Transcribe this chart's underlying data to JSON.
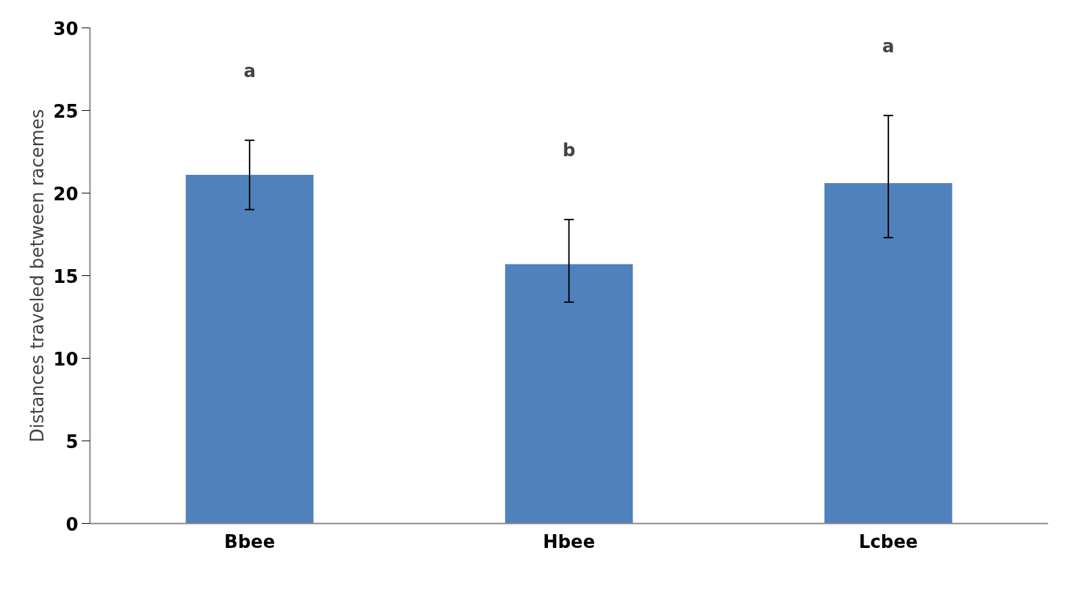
{
  "chart_data": {
    "type": "bar",
    "ylabel": "Distances traveled between racemes",
    "categories": [
      "Bbee",
      "Hbee",
      "Lcbee"
    ],
    "values": [
      21.1,
      15.7,
      20.6
    ],
    "errors": [
      [
        19.0,
        23.2
      ],
      [
        13.4,
        18.4
      ],
      [
        17.3,
        24.7
      ]
    ],
    "color": "#4f81bd",
    "ylim": [
      0,
      30
    ],
    "yticks": [
      0,
      5,
      10,
      15,
      20,
      25,
      30
    ],
    "grid": false,
    "annotations": [
      "a",
      "b",
      "a"
    ]
  }
}
